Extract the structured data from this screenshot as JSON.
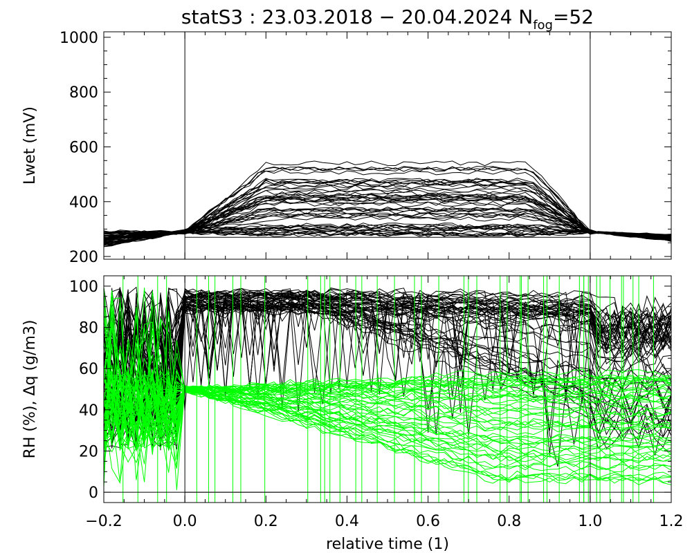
{
  "chart_data": {
    "title": {
      "prefix": "statS3 : 23.03.2018 − 20.04.2024 N",
      "subscript": "fog",
      "suffix": "=52"
    },
    "xlabel": "relative time (1)",
    "xlim": [
      -0.2,
      1.2
    ],
    "x_ticks": [
      -0.2,
      0.0,
      0.2,
      0.4,
      0.6,
      0.8,
      1.0,
      1.2
    ],
    "x_tick_labels": [
      "−0.2",
      "0.0",
      "0.2",
      "0.4",
      "0.6",
      "0.8",
      "1.0",
      "1.2"
    ],
    "n_fog": 52,
    "panels": [
      {
        "name": "lwet",
        "type": "line",
        "ylabel": "Lwet (mV)",
        "ylim": [
          190,
          1020
        ],
        "y_ticks": [
          200,
          400,
          600,
          800,
          1000
        ],
        "y_tick_labels": [
          "200",
          "400",
          "600",
          "800",
          "1000"
        ],
        "vertical_markers": [
          0.0,
          1.0
        ],
        "reference_line": 270,
        "series_color": "#000000",
        "series_count": 52
      },
      {
        "name": "rh_dq",
        "type": "line",
        "ylabel": "RH (%), Δq (g/m3)",
        "ylim": [
          -5,
          105
        ],
        "y_ticks": [
          0,
          20,
          40,
          60,
          80,
          100
        ],
        "y_tick_labels": [
          "0",
          "20",
          "40",
          "60",
          "80",
          "100"
        ],
        "vertical_markers": [
          0.0,
          1.0
        ],
        "reference_line": 0,
        "series": [
          {
            "quantity": "RH",
            "color": "#000000",
            "count": 52
          },
          {
            "quantity": "dq",
            "color": "#00ff00",
            "count": 52
          }
        ]
      }
    ]
  }
}
